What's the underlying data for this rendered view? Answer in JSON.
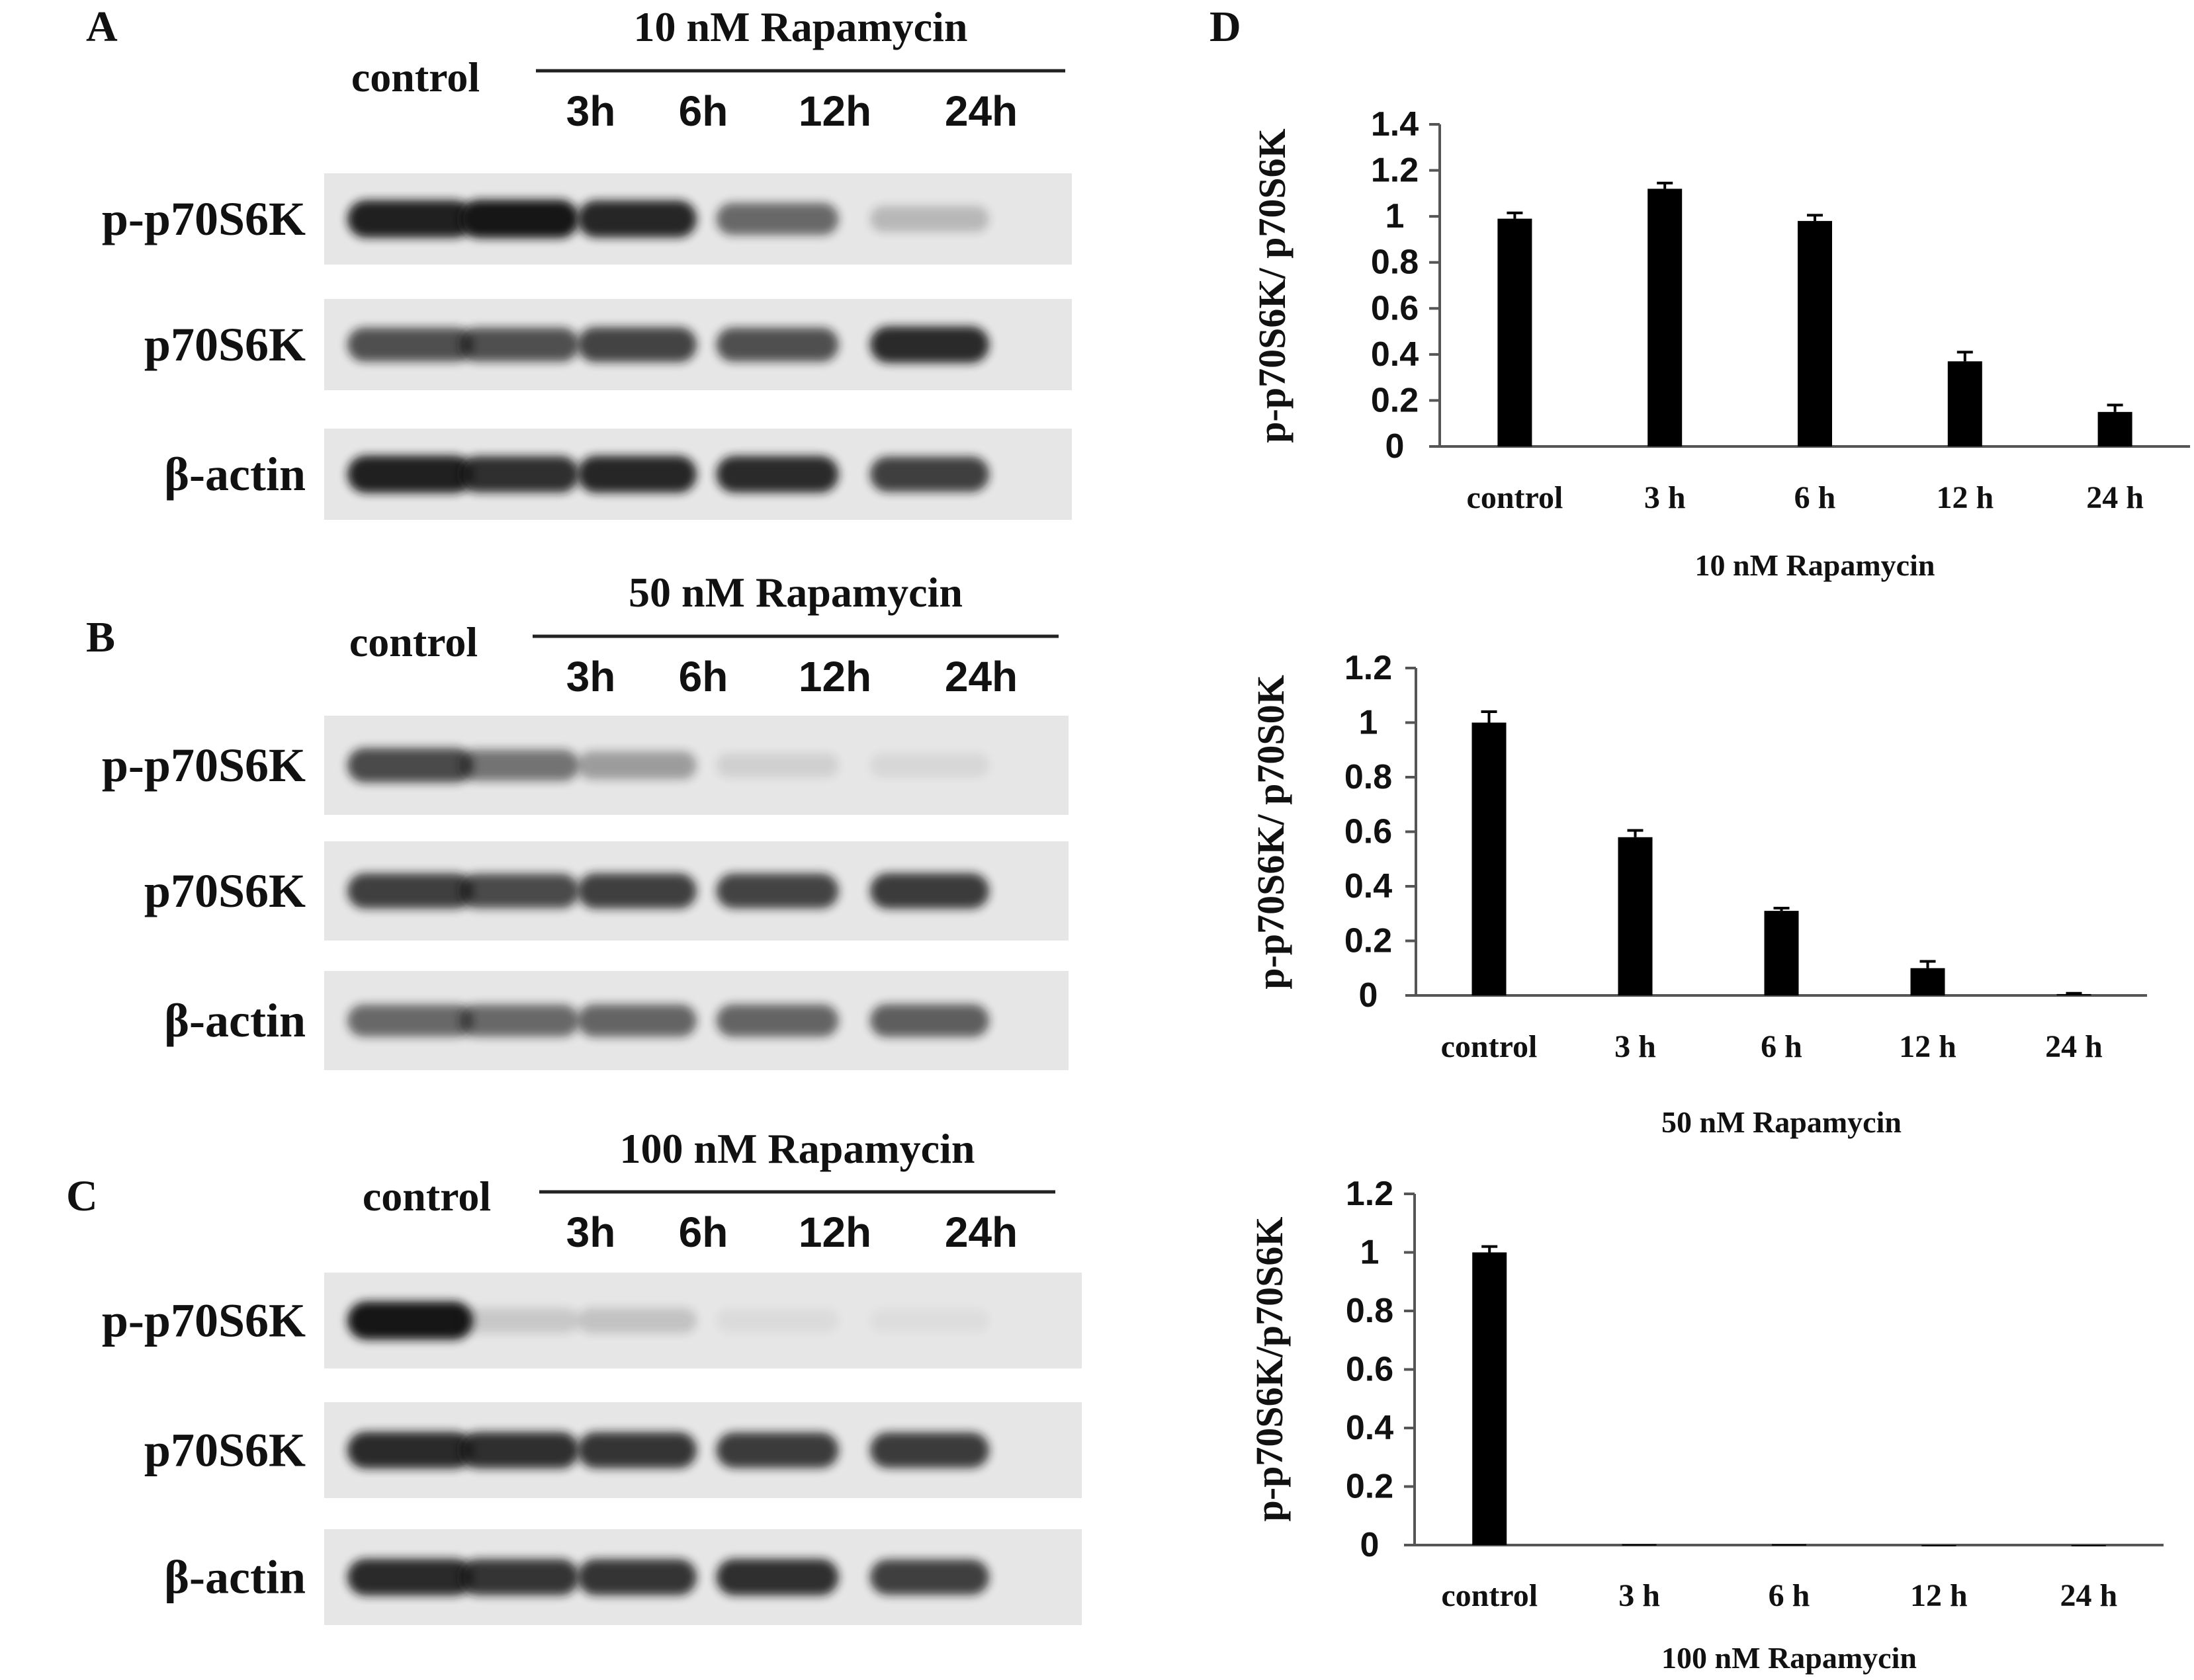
{
  "figure": {
    "panel_letters": [
      "A",
      "B",
      "C",
      "D"
    ]
  },
  "blots": [
    {
      "panel": "A",
      "treatment": "10 nM Rapamycin",
      "control_label": "control",
      "time_labels": [
        "3h",
        "6h",
        "12h",
        "24h"
      ],
      "rows": [
        {
          "label": "p-p70S6K",
          "intensity": [
            0.95,
            1.0,
            0.92,
            0.6,
            0.22
          ]
        },
        {
          "label": "p70S6K",
          "intensity": [
            0.72,
            0.72,
            0.78,
            0.72,
            0.9
          ]
        },
        {
          "label": "β-actin",
          "intensity": [
            0.95,
            0.88,
            0.92,
            0.9,
            0.8
          ]
        }
      ]
    },
    {
      "panel": "B",
      "treatment": "50 nM Rapamycin",
      "control_label": "control",
      "time_labels": [
        "3h",
        "6h",
        "12h",
        "24h"
      ],
      "rows": [
        {
          "label": "p-p70S6K",
          "intensity": [
            0.75,
            0.55,
            0.35,
            0.1,
            0.07
          ]
        },
        {
          "label": "p70S6K",
          "intensity": [
            0.8,
            0.75,
            0.8,
            0.78,
            0.82
          ]
        },
        {
          "label": "β-actin",
          "intensity": [
            0.6,
            0.6,
            0.62,
            0.62,
            0.65
          ]
        }
      ]
    },
    {
      "panel": "C",
      "treatment": "100 nM Rapamycin",
      "control_label": "control",
      "time_labels": [
        "3h",
        "6h",
        "12h",
        "24h"
      ],
      "rows": [
        {
          "label": "p-p70S6K",
          "intensity": [
            1.0,
            0.14,
            0.17,
            0.05,
            0.04
          ]
        },
        {
          "label": "p70S6K",
          "intensity": [
            0.9,
            0.88,
            0.85,
            0.82,
            0.82
          ]
        },
        {
          "label": "β-actin",
          "intensity": [
            0.9,
            0.85,
            0.85,
            0.88,
            0.8
          ]
        }
      ]
    }
  ],
  "colors": {
    "bar": "#000000",
    "axis": "#555555",
    "text": "#111111",
    "blot_background": "#e6e6e6",
    "band": "#141414"
  },
  "chart_data": [
    {
      "type": "bar",
      "categories": [
        "control",
        "3 h",
        "6 h",
        "12 h",
        "24 h"
      ],
      "values": [
        0.99,
        1.12,
        0.98,
        0.37,
        0.15
      ],
      "errors": [
        0.025,
        0.025,
        0.025,
        0.04,
        0.03
      ],
      "xlabel": "10 nM  Rapamycin",
      "ylabel": "p-p70S6K/ p70S6K",
      "ylim": [
        0,
        1.4
      ],
      "yticks": [
        0,
        0.2,
        0.4,
        0.6,
        0.8,
        1,
        1.2,
        1.4
      ],
      "ytick_labels": [
        "0",
        "0.2",
        "0.4",
        "0.6",
        "0.8",
        "1",
        "1.2",
        "1.4"
      ],
      "grid": false,
      "legend": false
    },
    {
      "type": "bar",
      "categories": [
        "control",
        "3 h",
        "6 h",
        "12 h",
        "24 h"
      ],
      "values": [
        1.0,
        0.58,
        0.31,
        0.1,
        0.005
      ],
      "errors": [
        0.04,
        0.025,
        0.01,
        0.025,
        0.003
      ],
      "xlabel": "50 nM Rapamycin",
      "ylabel": "p-p70S6K/ p70S0K",
      "ylim": [
        0,
        1.2
      ],
      "yticks": [
        0,
        0.2,
        0.4,
        0.6,
        0.8,
        1,
        1.2
      ],
      "ytick_labels": [
        "0",
        "0.2",
        "0.4",
        "0.6",
        "0.8",
        "1",
        "1.2"
      ],
      "grid": false,
      "legend": false
    },
    {
      "type": "bar",
      "categories": [
        "control",
        "3 h",
        "6 h",
        "12 h",
        "24 h"
      ],
      "values": [
        1.0,
        0.003,
        0.003,
        0.0,
        0.0
      ],
      "errors": [
        0.02,
        0.0,
        0.0,
        0.0,
        0.0
      ],
      "xlabel": "100 nM  Rapamycin",
      "ylabel": "p-p70S6K/p70S6K",
      "ylim": [
        0,
        1.2
      ],
      "yticks": [
        0,
        0.2,
        0.4,
        0.6,
        0.8,
        1,
        1.2
      ],
      "ytick_labels": [
        "0",
        "0.2",
        "0.4",
        "0.6",
        "0.8",
        "1",
        "1.2"
      ],
      "grid": false,
      "legend": false
    }
  ]
}
